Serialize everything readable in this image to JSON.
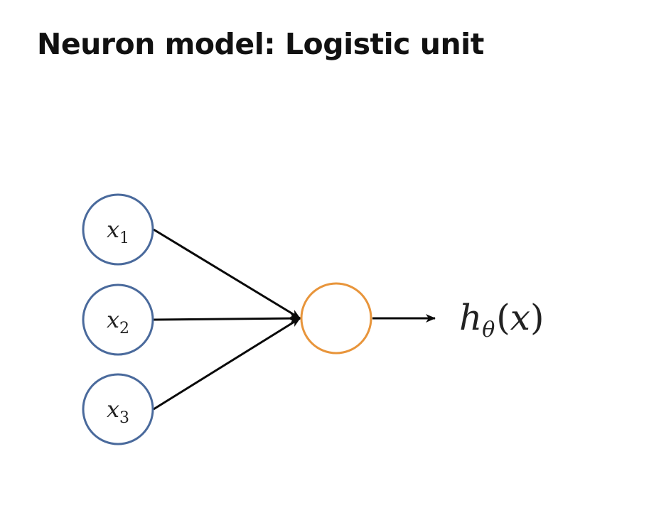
{
  "slide": {
    "title": "Neuron model: Logistic unit"
  },
  "diagram": {
    "colors": {
      "input_node": "#4a6a9c",
      "hidden_node": "#e8953b",
      "edge": "#0a0a0a",
      "text": "#222222"
    },
    "inputs": [
      {
        "var": "x",
        "sub": "1"
      },
      {
        "var": "x",
        "sub": "2"
      },
      {
        "var": "x",
        "sub": "3"
      }
    ],
    "output": {
      "func": "h",
      "sub": "θ",
      "open": "(",
      "arg": "x",
      "close": ")"
    }
  }
}
